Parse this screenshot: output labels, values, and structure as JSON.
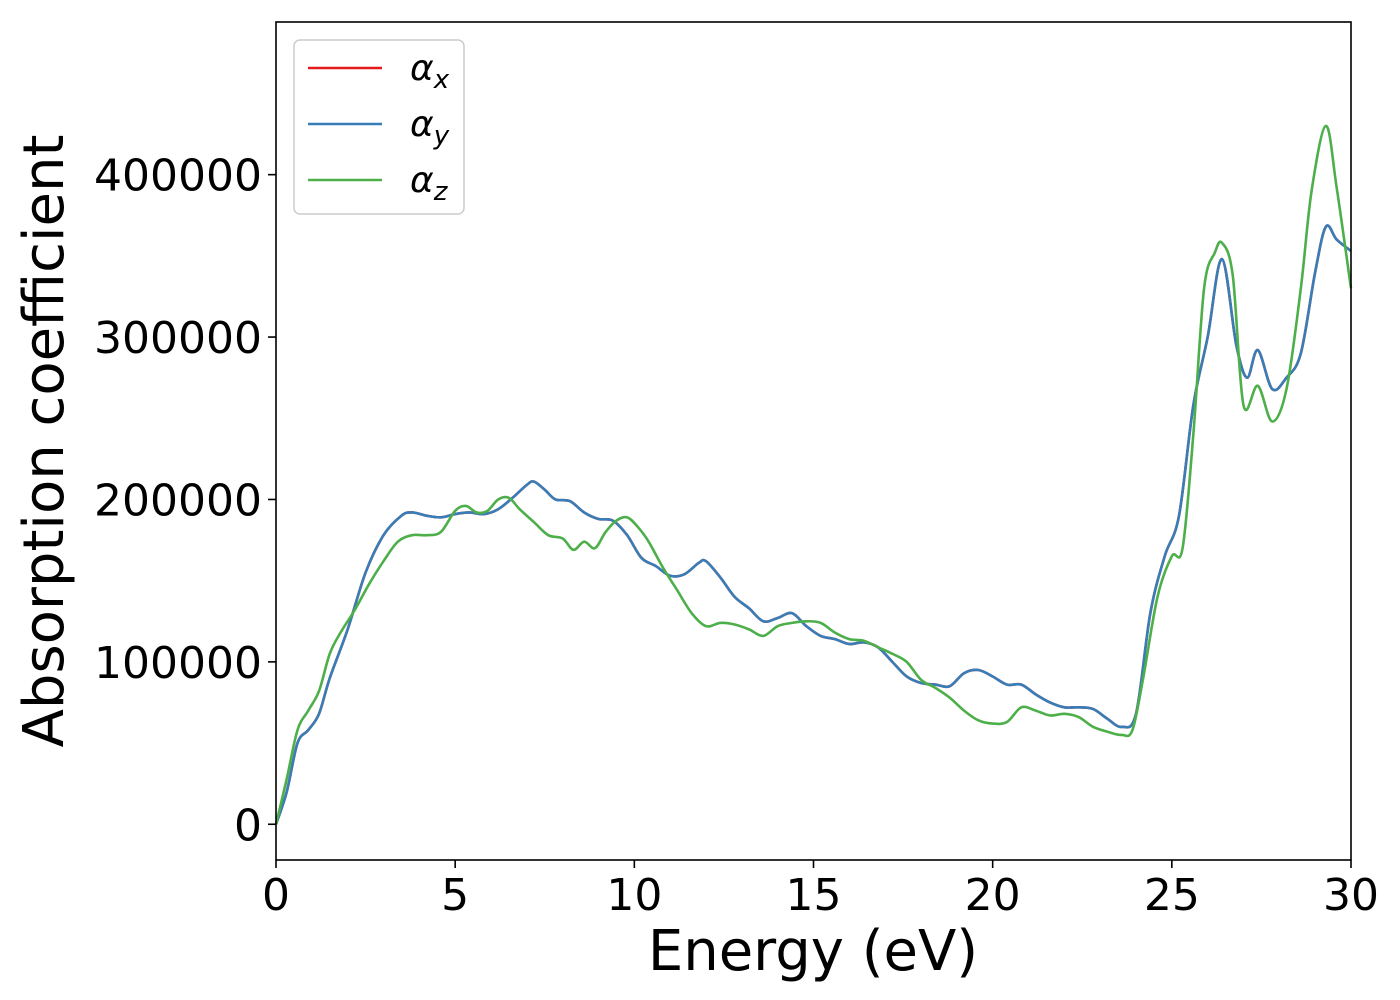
{
  "chart_data": {
    "type": "line",
    "xlabel": "Energy (eV)",
    "ylabel": "Absorption coefficient",
    "xlim": [
      0,
      30
    ],
    "ylim": [
      -22000,
      494000
    ],
    "xticks": [
      0,
      5,
      10,
      15,
      20,
      25,
      30
    ],
    "yticks": [
      0,
      100000,
      200000,
      300000,
      400000
    ],
    "grid": false,
    "legend_position": "top-left",
    "series": [
      {
        "name": "α_x",
        "label_main": "α",
        "label_sub": "x",
        "color": "#e41a1c",
        "x": [
          0,
          0.3,
          0.6,
          0.9,
          1.2,
          1.5,
          2,
          2.5,
          3,
          3.5,
          3.8,
          4.2,
          4.6,
          5,
          5.4,
          5.8,
          6.2,
          6.6,
          7,
          7.2,
          7.5,
          7.8,
          8.2,
          8.6,
          9,
          9.4,
          9.8,
          10.2,
          10.6,
          11,
          11.4,
          11.8,
          12,
          12.4,
          12.8,
          13.2,
          13.6,
          14,
          14.4,
          14.8,
          15.2,
          15.6,
          16,
          16.4,
          16.8,
          17.2,
          17.6,
          18,
          18.4,
          18.8,
          19.2,
          19.6,
          20,
          20.4,
          20.8,
          21.2,
          21.6,
          22,
          22.4,
          22.8,
          23.2,
          23.6,
          24,
          24.4,
          24.8,
          25.2,
          25.6,
          26,
          26.4,
          26.8,
          27.1,
          27.4,
          27.8,
          28.2,
          28.6,
          29,
          29.3,
          29.6,
          30
        ],
        "y": [
          0,
          20000,
          50000,
          58000,
          68000,
          90000,
          120000,
          155000,
          178000,
          190000,
          192000,
          190000,
          189000,
          191000,
          192000,
          191000,
          194000,
          201000,
          209000,
          211000,
          206000,
          200000,
          199000,
          192000,
          188000,
          187000,
          178000,
          164000,
          159000,
          153000,
          154000,
          161000,
          162000,
          152000,
          140000,
          133000,
          125000,
          127000,
          130000,
          122000,
          116000,
          114000,
          111000,
          112000,
          109000,
          100000,
          91000,
          87000,
          86000,
          85000,
          93000,
          95000,
          91000,
          86000,
          86000,
          80000,
          75000,
          72000,
          72000,
          71000,
          65000,
          60000,
          68000,
          130000,
          165000,
          190000,
          258000,
          300000,
          348000,
          295000,
          275000,
          292000,
          268000,
          275000,
          290000,
          340000,
          368000,
          360000,
          353000
        ]
      },
      {
        "name": "α_y",
        "label_main": "α",
        "label_sub": "y",
        "color": "#377eb8",
        "x": [
          0,
          0.3,
          0.6,
          0.9,
          1.2,
          1.5,
          2,
          2.5,
          3,
          3.5,
          3.8,
          4.2,
          4.6,
          5,
          5.4,
          5.8,
          6.2,
          6.6,
          7,
          7.2,
          7.5,
          7.8,
          8.2,
          8.6,
          9,
          9.4,
          9.8,
          10.2,
          10.6,
          11,
          11.4,
          11.8,
          12,
          12.4,
          12.8,
          13.2,
          13.6,
          14,
          14.4,
          14.8,
          15.2,
          15.6,
          16,
          16.4,
          16.8,
          17.2,
          17.6,
          18,
          18.4,
          18.8,
          19.2,
          19.6,
          20,
          20.4,
          20.8,
          21.2,
          21.6,
          22,
          22.4,
          22.8,
          23.2,
          23.6,
          24,
          24.4,
          24.8,
          25.2,
          25.6,
          26,
          26.4,
          26.8,
          27.1,
          27.4,
          27.8,
          28.2,
          28.6,
          29,
          29.3,
          29.6,
          30
        ],
        "y": [
          0,
          20000,
          50000,
          58000,
          68000,
          90000,
          120000,
          155000,
          178000,
          190000,
          192000,
          190000,
          189000,
          191000,
          192000,
          191000,
          194000,
          201000,
          209000,
          211000,
          206000,
          200000,
          199000,
          192000,
          188000,
          187000,
          178000,
          164000,
          159000,
          153000,
          154000,
          161000,
          162000,
          152000,
          140000,
          133000,
          125000,
          127000,
          130000,
          122000,
          116000,
          114000,
          111000,
          112000,
          109000,
          100000,
          91000,
          87000,
          86000,
          85000,
          93000,
          95000,
          91000,
          86000,
          86000,
          80000,
          75000,
          72000,
          72000,
          71000,
          65000,
          60000,
          68000,
          130000,
          165000,
          190000,
          258000,
          300000,
          348000,
          295000,
          275000,
          292000,
          268000,
          275000,
          290000,
          340000,
          368000,
          360000,
          353000
        ]
      },
      {
        "name": "α_z",
        "label_main": "α",
        "label_sub": "z",
        "color": "#4daf4a",
        "x": [
          0,
          0.3,
          0.6,
          0.9,
          1.2,
          1.5,
          1.8,
          2.2,
          2.6,
          3,
          3.4,
          3.8,
          4.2,
          4.6,
          5,
          5.3,
          5.6,
          5.9,
          6.2,
          6.5,
          6.8,
          7.2,
          7.6,
          8,
          8.3,
          8.6,
          8.9,
          9.2,
          9.5,
          9.8,
          10.1,
          10.4,
          10.8,
          11.2,
          11.6,
          12,
          12.4,
          12.8,
          13.2,
          13.6,
          14,
          14.4,
          14.8,
          15.2,
          15.6,
          16,
          16.4,
          16.8,
          17.2,
          17.6,
          18,
          18.4,
          18.8,
          19.2,
          19.6,
          20,
          20.4,
          20.8,
          21.2,
          21.6,
          22,
          22.4,
          22.8,
          23.2,
          23.6,
          23.9,
          24.2,
          24.6,
          25,
          25.3,
          25.6,
          25.9,
          26.2,
          26.4,
          26.7,
          27,
          27.4,
          27.8,
          28.2,
          28.6,
          28.9,
          29.3,
          29.6,
          30
        ],
        "y": [
          0,
          28000,
          58000,
          70000,
          82000,
          105000,
          118000,
          132000,
          148000,
          162000,
          174000,
          178000,
          178000,
          180000,
          193000,
          196000,
          192000,
          193000,
          200000,
          201000,
          194000,
          186000,
          178000,
          176000,
          169000,
          174000,
          170000,
          180000,
          187000,
          189000,
          183000,
          174000,
          158000,
          144000,
          130000,
          122000,
          124000,
          123000,
          120000,
          116000,
          122000,
          124000,
          125000,
          124000,
          118000,
          114000,
          113000,
          109000,
          105000,
          100000,
          89000,
          84000,
          78000,
          70000,
          64000,
          62000,
          63000,
          72000,
          70000,
          67000,
          68000,
          66000,
          60000,
          57000,
          55000,
          58000,
          90000,
          140000,
          165000,
          170000,
          240000,
          330000,
          352000,
          358000,
          338000,
          258000,
          270000,
          248000,
          268000,
          330000,
          390000,
          430000,
          392000,
          330000
        ]
      }
    ]
  }
}
